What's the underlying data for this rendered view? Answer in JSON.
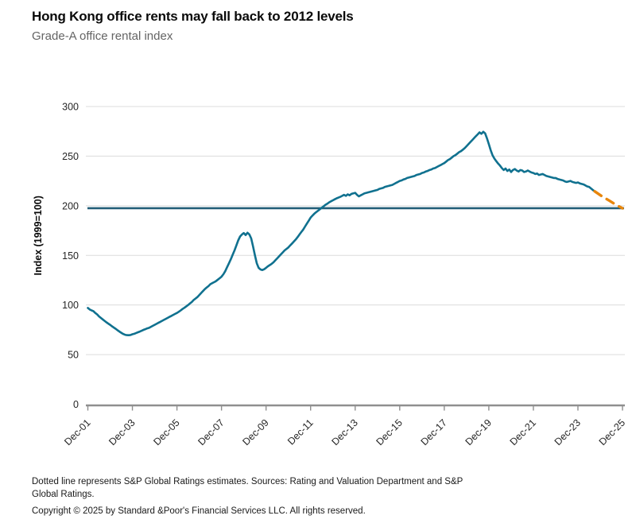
{
  "header": {
    "title": "Hong Kong office rents may fall back to 2012 levels",
    "subtitle": "Grade-A office rental index"
  },
  "footer": {
    "note": "Dotted line represents S&P Global Ratings estimates. Sources: Rating and Valuation Department and S&P Global Ratings.",
    "copyright": "Copyright © 2025 by Standard &Poor's Financial Services LLC. All rights reserved."
  },
  "chart_data": {
    "type": "line",
    "title": "Hong Kong office rents may fall back to 2012 levels",
    "subtitle": "Grade-A office rental index",
    "ylabel": "Index (1999=100)",
    "ylim": [
      0,
      300
    ],
    "yticks": [
      0,
      50,
      100,
      150,
      200,
      250,
      300
    ],
    "grid": "horizontal",
    "x_unit": "months since Dec-2001",
    "xlim": [
      0,
      288
    ],
    "xtick_months": [
      0,
      24,
      48,
      72,
      96,
      120,
      144,
      168,
      192,
      216,
      240,
      264,
      288
    ],
    "xtick_labels": [
      "Dec-01",
      "Dec-03",
      "Dec-05",
      "Dec-07",
      "Dec-09",
      "Dec-11",
      "Dec-13",
      "Dec-15",
      "Dec-17",
      "Dec-19",
      "Dec-21",
      "Dec-23",
      "Dec-25"
    ],
    "benchmark_line": {
      "value": 197.5,
      "color": "#235e78"
    },
    "colors": {
      "actual": "#10718f",
      "estimate": "#e8860c",
      "gridline": "#dcdcdc",
      "axis": "#8f8f8f",
      "tick_text": "#262626"
    },
    "series": [
      {
        "name": "Grade-A office rental index (actual)",
        "color": "#10718f",
        "line_style": "solid",
        "x_start_month": 0,
        "x_step_months": 1,
        "values": [
          97,
          95.5,
          94.5,
          93.8,
          92,
          90.5,
          88.5,
          87,
          85.5,
          84,
          82.5,
          81.2,
          80,
          78.5,
          77.2,
          76,
          74.5,
          73.2,
          72,
          70.8,
          70,
          69.6,
          69.5,
          69.8,
          70.5,
          71,
          71.8,
          72.5,
          73.2,
          74,
          75,
          75.6,
          76.4,
          77,
          78,
          79,
          80,
          81,
          82,
          83,
          84,
          85,
          86,
          87,
          88,
          89,
          90,
          91,
          92,
          93.2,
          94.5,
          96,
          97.2,
          98.6,
          100,
          101.5,
          103,
          105,
          106.5,
          108,
          110,
          112,
          114,
          116,
          117.5,
          119,
          121,
          122,
          123,
          124,
          125.5,
          127,
          128.5,
          131,
          134,
          138,
          142,
          146,
          150.5,
          155,
          160,
          165,
          169,
          171,
          172.5,
          170.5,
          172.8,
          171,
          167,
          159,
          150,
          142,
          137.5,
          135.8,
          135.2,
          136,
          137.5,
          139,
          140.2,
          141.5,
          143,
          145,
          147,
          149,
          151,
          153,
          155,
          156.5,
          158,
          160,
          162,
          164,
          166,
          168.5,
          171,
          173.5,
          176,
          179,
          182,
          185,
          188,
          190,
          192,
          193.5,
          195,
          196.5,
          198,
          199.5,
          201,
          202,
          203.5,
          204.5,
          205.5,
          206.5,
          207.5,
          208.2,
          209,
          210,
          211,
          210,
          211.5,
          210.5,
          212,
          212.5,
          213,
          211,
          209.5,
          210.5,
          211.5,
          212.5,
          213,
          213.5,
          214,
          214.5,
          215,
          215.5,
          216,
          217,
          217.5,
          218,
          219,
          219.5,
          220,
          220.5,
          221,
          222,
          223,
          224,
          225,
          225.5,
          226.5,
          227,
          228,
          228.5,
          229,
          229.5,
          230,
          231,
          231.5,
          232,
          233,
          233.5,
          234.5,
          235,
          236,
          236.5,
          237.5,
          238,
          239,
          240,
          241,
          242,
          243,
          244.5,
          246,
          247,
          248.5,
          250,
          251,
          252.5,
          254,
          255,
          256.5,
          258,
          260,
          262,
          264,
          266,
          268,
          270,
          272,
          274,
          272.5,
          274.5,
          273,
          268,
          262,
          256,
          251,
          247.5,
          245,
          242.5,
          240.5,
          238,
          236,
          237.5,
          235,
          236.5,
          234,
          236,
          237,
          235.5,
          234.5,
          236,
          235.5,
          234,
          234.5,
          235.5,
          234.5,
          233.5,
          233,
          232,
          232.5,
          231,
          231.5,
          232,
          231,
          230,
          229.5,
          229,
          228.5,
          228,
          228,
          227,
          226.5,
          226,
          225.5,
          224.5,
          224,
          224.5,
          225,
          224,
          223.5,
          223,
          223.5,
          222.5,
          222,
          221.5,
          220.5,
          219.5,
          219,
          217.5,
          216,
          214.5
        ]
      },
      {
        "name": "S&P Global Ratings estimates",
        "color": "#e8860c",
        "line_style": "dashed",
        "points": [
          [
            273,
            214.5
          ],
          [
            277,
            209.5
          ],
          [
            281,
            205
          ],
          [
            284.5,
            201
          ],
          [
            288,
            197.5
          ]
        ]
      }
    ]
  }
}
